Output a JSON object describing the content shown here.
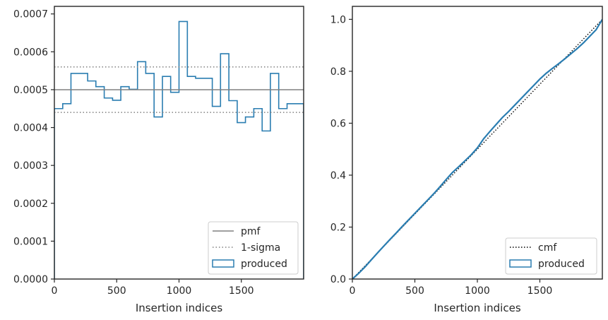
{
  "colors": {
    "produced": "#2a7db1",
    "reference": "#808080",
    "cmf": "#000000",
    "axes": "#262626"
  },
  "chart_data": [
    {
      "type": "step",
      "xlabel": "Insertion indices",
      "ylabel": "",
      "xlim": [
        0,
        2000
      ],
      "ylim": [
        0,
        0.00072
      ],
      "xticks": [
        0,
        500,
        1000,
        1500
      ],
      "xtick_labels": [
        "0",
        "500",
        "1000",
        "1500"
      ],
      "yticks": [
        0,
        0.0001,
        0.0002,
        0.0003,
        0.0004,
        0.0005,
        0.0006,
        0.0007
      ],
      "ytick_labels": [
        "0.0000",
        "0.0001",
        "0.0002",
        "0.0003",
        "0.0004",
        "0.0005",
        "0.0006",
        "0.0007"
      ],
      "bin_edges": [
        0,
        67,
        133,
        200,
        267,
        333,
        400,
        467,
        533,
        600,
        667,
        733,
        800,
        867,
        933,
        1000,
        1067,
        1133,
        1200,
        1267,
        1333,
        1400,
        1467,
        1533,
        1600,
        1667,
        1733,
        1800,
        1867,
        1933,
        2000
      ],
      "series": [
        {
          "name": "produced",
          "style": "step",
          "values": [
            0.00045,
            0.000463,
            0.000543,
            0.000543,
            0.000523,
            0.000508,
            0.000478,
            0.000472,
            0.000508,
            0.000501,
            0.000574,
            0.000543,
            0.000428,
            0.000535,
            0.000493,
            0.00068,
            0.000535,
            0.00053,
            0.00053,
            0.000456,
            0.000595,
            0.000471,
            0.000413,
            0.000428,
            0.00045,
            0.000391,
            0.000543,
            0.00045,
            0.000463,
            0.000463
          ]
        },
        {
          "name": "pmf",
          "style": "solid",
          "value": 0.0005
        },
        {
          "name": "1-sigma",
          "style": "dotted",
          "values": [
            0.00044,
            0.00056
          ]
        }
      ],
      "legend": {
        "position": "bottom-right",
        "entries": [
          "pmf",
          "1-sigma",
          "produced"
        ]
      }
    },
    {
      "type": "line",
      "xlabel": "Insertion indices",
      "ylabel": "",
      "xlim": [
        0,
        2000
      ],
      "ylim": [
        0,
        1.05
      ],
      "xticks": [
        0,
        500,
        1000,
        1500
      ],
      "xtick_labels": [
        "0",
        "500",
        "1000",
        "1500"
      ],
      "yticks": [
        0,
        0.2,
        0.4,
        0.6,
        0.8,
        1.0
      ],
      "ytick_labels": [
        "0.0",
        "0.2",
        "0.4",
        "0.6",
        "0.8",
        "1.0"
      ],
      "series": [
        {
          "name": "cmf",
          "style": "dotted",
          "x": [
            0,
            2000
          ],
          "y": [
            0,
            1
          ]
        },
        {
          "name": "produced",
          "style": "solid",
          "x": [
            0,
            50,
            100,
            150,
            200,
            250,
            300,
            350,
            400,
            450,
            500,
            550,
            600,
            650,
            700,
            750,
            800,
            850,
            900,
            950,
            1000,
            1050,
            1100,
            1150,
            1200,
            1250,
            1300,
            1350,
            1400,
            1450,
            1500,
            1550,
            1600,
            1650,
            1700,
            1750,
            1800,
            1850,
            1900,
            1950,
            2000
          ],
          "y": [
            0,
            0.022,
            0.046,
            0.073,
            0.1,
            0.126,
            0.152,
            0.177,
            0.203,
            0.228,
            0.253,
            0.278,
            0.303,
            0.328,
            0.355,
            0.383,
            0.41,
            0.432,
            0.455,
            0.478,
            0.505,
            0.54,
            0.568,
            0.595,
            0.622,
            0.645,
            0.67,
            0.695,
            0.72,
            0.745,
            0.77,
            0.792,
            0.811,
            0.829,
            0.848,
            0.868,
            0.888,
            0.91,
            0.935,
            0.96,
            1.0
          ]
        }
      ],
      "legend": {
        "position": "bottom-right",
        "entries": [
          "cmf",
          "produced"
        ]
      }
    }
  ]
}
